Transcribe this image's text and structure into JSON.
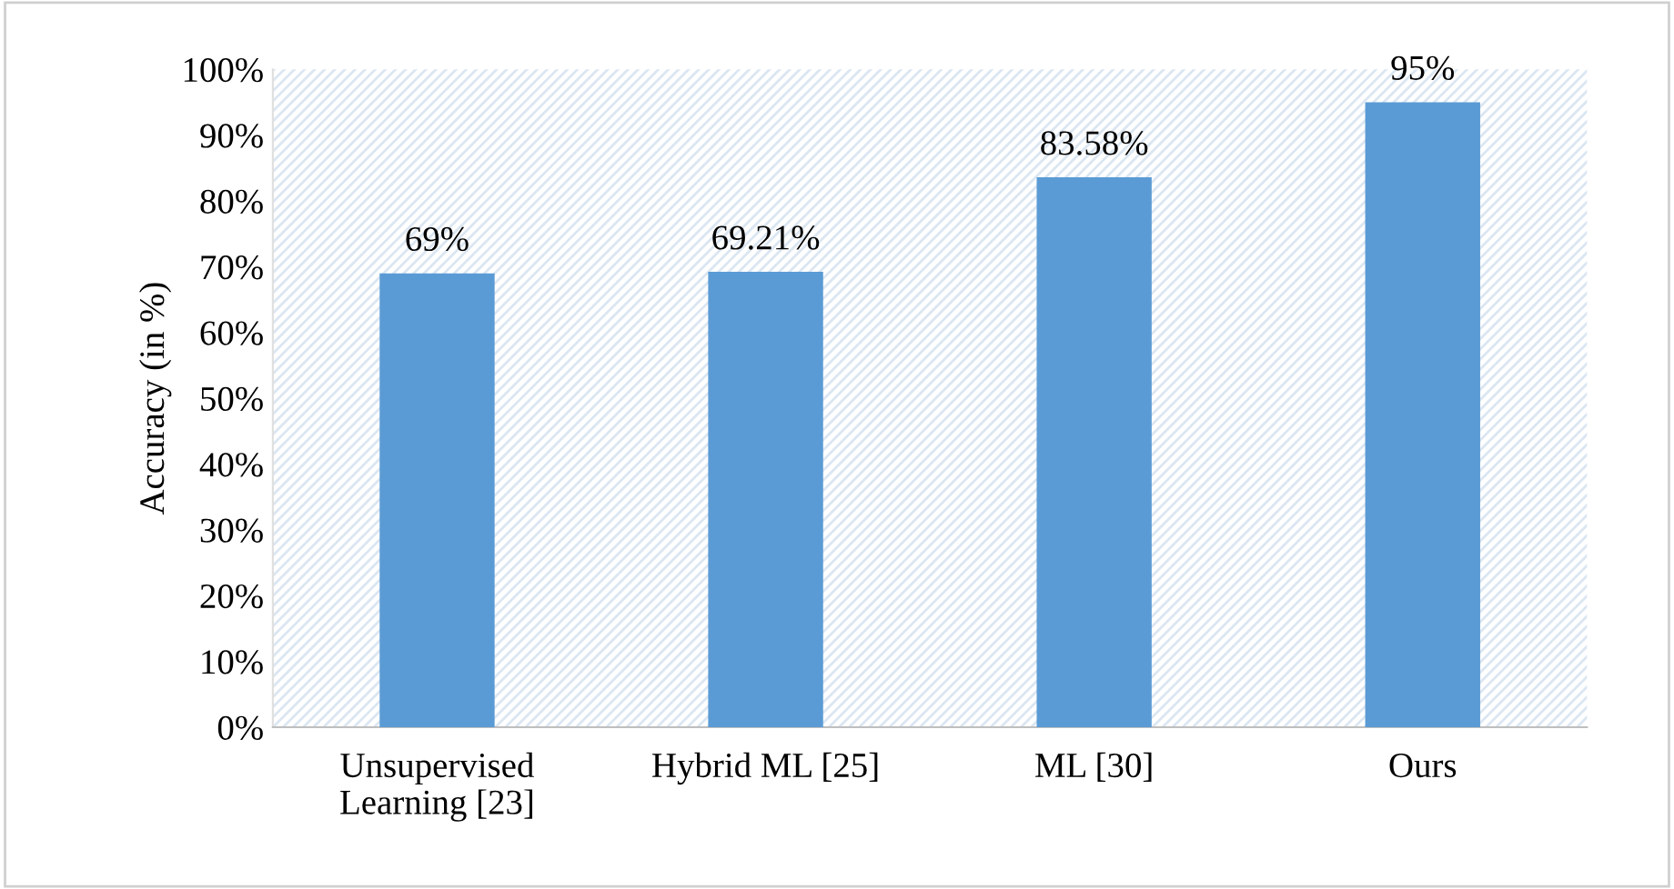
{
  "chart_data": {
    "type": "bar",
    "ylabel": "Accuracy (in %)",
    "categories": [
      "Unsupervised\nLearning [23]",
      "Hybrid ML [25]",
      "ML [30]",
      "Ours"
    ],
    "values": [
      69,
      69.21,
      83.58,
      95
    ],
    "color": "#5b9bd5",
    "value_labels": [
      "69%",
      "69.21%",
      "83.58%",
      "95%"
    ],
    "ylim": [
      0,
      100
    ],
    "yticks": [
      {
        "value": 0,
        "label": "0%"
      },
      {
        "value": 10,
        "label": "10%"
      },
      {
        "value": 20,
        "label": "20%"
      },
      {
        "value": 30,
        "label": "30%"
      },
      {
        "value": 40,
        "label": "40%"
      },
      {
        "value": 50,
        "label": "50%"
      },
      {
        "value": 60,
        "label": "60%"
      },
      {
        "value": 70,
        "label": "70%"
      },
      {
        "value": 80,
        "label": "80%"
      },
      {
        "value": 90,
        "label": "90%"
      },
      {
        "value": 100,
        "label": "100%"
      }
    ],
    "grid": false,
    "legend": false
  }
}
